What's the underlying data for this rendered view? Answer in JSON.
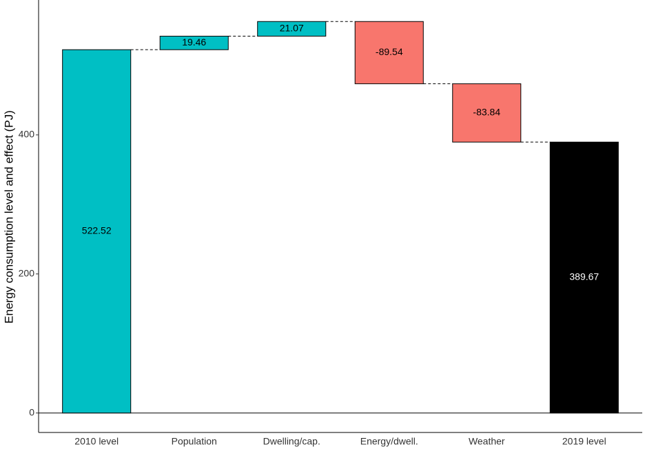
{
  "chart_data": {
    "type": "waterfall",
    "y_label": "Energy consumption level and effect (PJ)",
    "categories": [
      "2010 level",
      "Population",
      "Dwelling/cap.",
      "Energy/dwell.",
      "Weather",
      "2019 level"
    ],
    "values": [
      522.52,
      19.46,
      21.07,
      -89.54,
      -83.84,
      389.67
    ],
    "colors": [
      "#00BFC4",
      "#00BFC4",
      "#00BFC4",
      "#F8766D",
      "#F8766D",
      "#000000"
    ],
    "ylim": [
      -28,
      594
    ],
    "yticks": [
      0,
      200,
      400
    ]
  }
}
